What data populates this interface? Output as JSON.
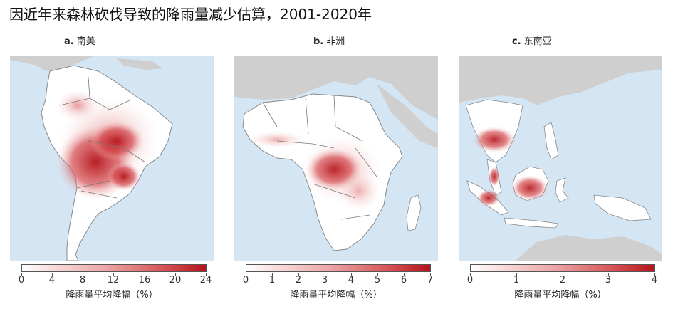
{
  "title": "因近年来森林砍伐导致的降雨量减少估算，2001-2020年",
  "panels": [
    {
      "letter": "a.",
      "name": "南美",
      "ticks": [
        "0",
        "4",
        "8",
        "12",
        "16",
        "20",
        "24"
      ]
    },
    {
      "letter": "b.",
      "name": "非洲",
      "ticks": [
        "0",
        "1",
        "2",
        "3",
        "4",
        "5",
        "6",
        "7"
      ]
    },
    {
      "letter": "c.",
      "name": "东南亚",
      "ticks": [
        "0",
        "1",
        "2",
        "3",
        "4"
      ]
    }
  ],
  "colorbar_title": "降雨量平均降幅（%）",
  "colors": {
    "ocean": "#d4e5f3",
    "land_other": "#cfcfcf",
    "land_region": "#ffffff",
    "max": "#b5131b",
    "border": "#555555"
  }
}
